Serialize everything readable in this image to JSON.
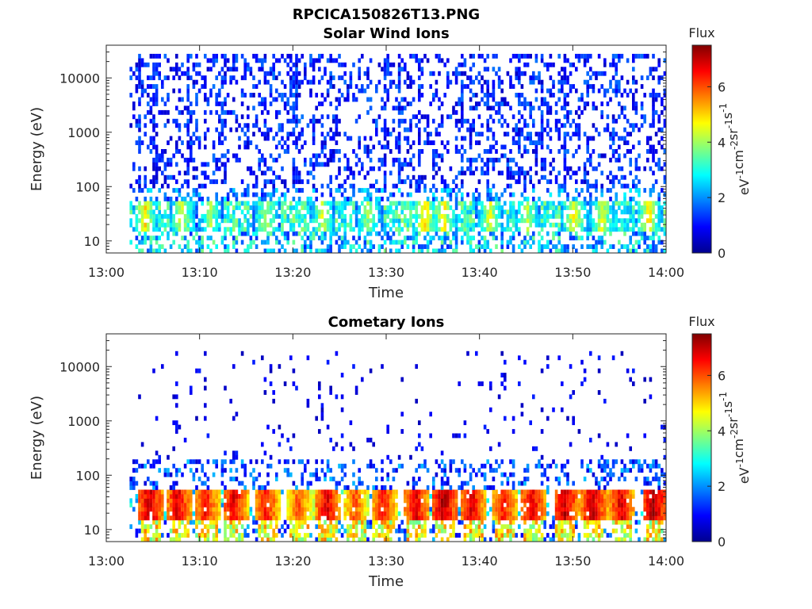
{
  "figure_title": "RPCICA150826T13.PNG",
  "colorbar_label": "Flux",
  "colorbar_unit_parts": [
    "eV",
    "-1",
    "cm",
    "-2",
    "sr",
    "-1",
    "s",
    "-1"
  ],
  "chart_data": [
    {
      "type": "heatmap",
      "title": "Solar Wind Ions",
      "xlabel": "Time",
      "ylabel": "Energy (eV)",
      "x_ticks": [
        "13:00",
        "13:10",
        "13:20",
        "13:30",
        "13:40",
        "13:50",
        "14:00"
      ],
      "x_range": [
        "13:00",
        "14:00"
      ],
      "y_scale": "log",
      "y_ticks": [
        "10",
        "100",
        "1000",
        "10000"
      ],
      "y_range": [
        6,
        40000
      ],
      "colorbar": {
        "label": "Flux",
        "ticks": [
          "0",
          "2",
          "4",
          "6"
        ],
        "range": [
          0,
          7.5
        ],
        "colormap": "jet"
      },
      "grid": false,
      "data_start_minute": 2.5,
      "signal_bands": [
        {
          "energy_range_eV": [
            15,
            50
          ],
          "typical_flux": 4.5,
          "note": "stronger patches near 13:04, 13:08, 13:34, 13:36, 13:50, 13:58"
        },
        {
          "energy_range_eV": [
            6,
            15
          ],
          "typical_flux": 2.5
        },
        {
          "energy_range_eV": [
            50,
            30000
          ],
          "typical_flux": 0.8,
          "note": "sparse noise, denser vertical streaks"
        }
      ],
      "series_points": [
        {
          "t": 4,
          "e": 30,
          "flux": 4.8
        },
        {
          "t": 8,
          "e": 30,
          "flux": 4.5
        },
        {
          "t": 11,
          "e": 30,
          "flux": 4.0
        },
        {
          "t": 17,
          "e": 30,
          "flux": 4.3
        },
        {
          "t": 23,
          "e": 30,
          "flux": 4.2
        },
        {
          "t": 28,
          "e": 30,
          "flux": 4.0
        },
        {
          "t": 34,
          "e": 30,
          "flux": 5.0
        },
        {
          "t": 36,
          "e": 30,
          "flux": 4.8
        },
        {
          "t": 41,
          "e": 30,
          "flux": 4.5
        },
        {
          "t": 45,
          "e": 30,
          "flux": 4.2
        },
        {
          "t": 50,
          "e": 30,
          "flux": 4.8
        },
        {
          "t": 53,
          "e": 30,
          "flux": 4.5
        },
        {
          "t": 58,
          "e": 30,
          "flux": 5.0
        }
      ]
    },
    {
      "type": "heatmap",
      "title": "Cometary Ions",
      "xlabel": "Time",
      "ylabel": "Energy (eV)",
      "x_ticks": [
        "13:00",
        "13:10",
        "13:20",
        "13:30",
        "13:40",
        "13:50",
        "14:00"
      ],
      "x_range": [
        "13:00",
        "14:00"
      ],
      "y_scale": "log",
      "y_ticks": [
        "10",
        "100",
        "1000",
        "10000"
      ],
      "y_range": [
        6,
        40000
      ],
      "colorbar": {
        "label": "Flux",
        "ticks": [
          "0",
          "2",
          "4",
          "6"
        ],
        "range": [
          0,
          7.5
        ],
        "colormap": "jet"
      },
      "grid": false,
      "data_start_minute": 2.5,
      "signal_bands": [
        {
          "energy_range_eV": [
            15,
            50
          ],
          "typical_flux": 6.5,
          "note": "periodic bursts about every 3 min"
        },
        {
          "energy_range_eV": [
            6,
            15
          ],
          "typical_flux": 3.0
        },
        {
          "energy_range_eV": [
            50,
            200
          ],
          "typical_flux": 1.0
        },
        {
          "energy_range_eV": [
            200,
            20000
          ],
          "typical_flux": 0.6,
          "note": "very sparse"
        }
      ],
      "bursts": [
        {
          "t": 4.5,
          "flux": 7.0
        },
        {
          "t": 7.5,
          "flux": 6.8
        },
        {
          "t": 10.5,
          "flux": 6.5
        },
        {
          "t": 13.5,
          "flux": 6.8
        },
        {
          "t": 17.0,
          "flux": 6.5
        },
        {
          "t": 20.5,
          "flux": 6.0
        },
        {
          "t": 23.5,
          "flux": 6.8
        },
        {
          "t": 26.5,
          "flux": 6.0
        },
        {
          "t": 29.5,
          "flux": 6.5
        },
        {
          "t": 33.0,
          "flux": 6.8
        },
        {
          "t": 36.0,
          "flux": 7.2
        },
        {
          "t": 39.0,
          "flux": 6.8
        },
        {
          "t": 42.5,
          "flux": 6.5
        },
        {
          "t": 45.5,
          "flux": 6.8
        },
        {
          "t": 49.0,
          "flux": 7.0
        },
        {
          "t": 52.0,
          "flux": 7.0
        },
        {
          "t": 55.0,
          "flux": 6.8
        },
        {
          "t": 58.5,
          "flux": 7.2
        }
      ]
    }
  ]
}
